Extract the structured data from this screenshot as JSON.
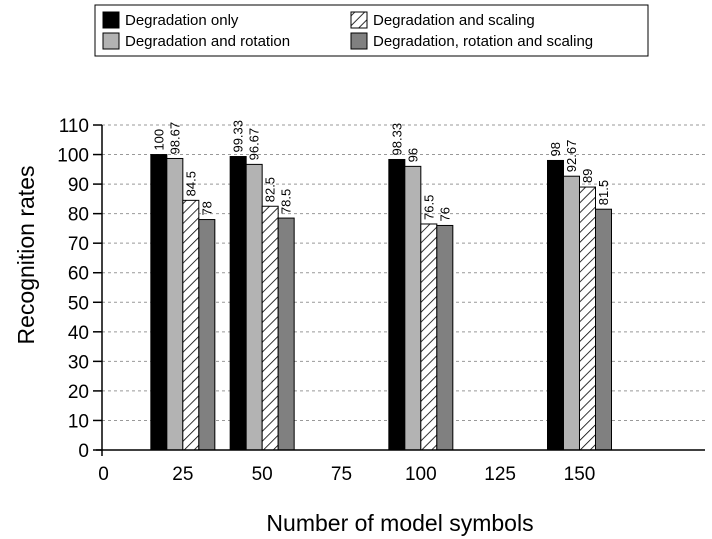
{
  "chart_data": {
    "type": "bar",
    "xlabel": "Number of model symbols",
    "ylabel": "Recognition rates",
    "xlim": [
      0,
      162
    ],
    "ylim": [
      0,
      110
    ],
    "x_ticks": [
      0,
      25,
      50,
      75,
      100,
      125,
      150
    ],
    "y_ticks": [
      0,
      10,
      20,
      30,
      40,
      50,
      60,
      70,
      80,
      90,
      100,
      110
    ],
    "grid": "horizontal dashed",
    "legend_position": "top",
    "x": [
      25,
      50,
      100,
      150
    ],
    "series": [
      {
        "name": "Degradation only",
        "values": [
          100,
          99.33,
          98.33,
          98
        ],
        "labels": [
          "100",
          "99.33",
          "98.33",
          "98"
        ],
        "color": "#000000",
        "pattern": "solid"
      },
      {
        "name": "Degradation and rotation",
        "values": [
          98.67,
          96.67,
          96,
          92.67
        ],
        "labels": [
          "98.67",
          "96.67",
          "96",
          "92.67"
        ],
        "color": "#b3b3b3",
        "pattern": "solid"
      },
      {
        "name": "Degradation and scaling",
        "values": [
          84.5,
          82.5,
          76.5,
          89
        ],
        "labels": [
          "84.5",
          "82.5",
          "76.5",
          "89"
        ],
        "color": "#ffffff",
        "pattern": "hatch"
      },
      {
        "name": "Degradation, rotation and scaling",
        "values": [
          78,
          78.5,
          76,
          81.5
        ],
        "labels": [
          "78",
          "78.5",
          "76",
          "81.5"
        ],
        "color": "#808080",
        "pattern": "solid"
      }
    ]
  }
}
